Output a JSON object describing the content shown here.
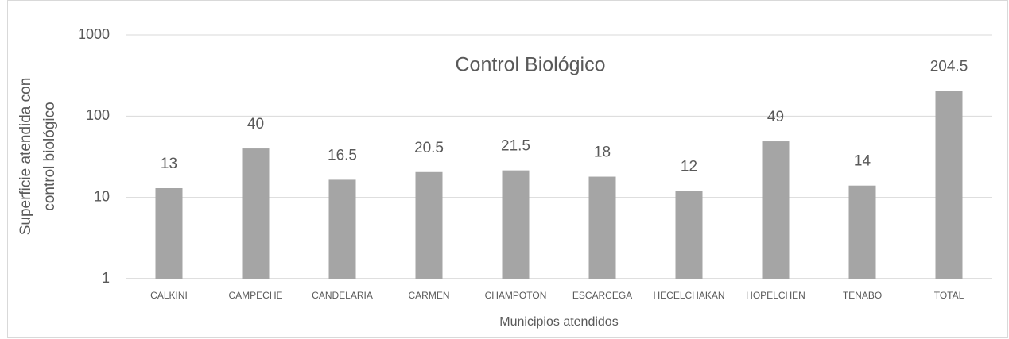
{
  "chart_data": {
    "type": "bar",
    "title": "Control Biológico",
    "x_label": "Municipios atendidos",
    "y_label": [
      "Superficie atendida con",
      "control biológico"
    ],
    "categories": [
      "CALKINI",
      "CAMPECHE",
      "CANDELARIA",
      "CARMEN",
      "CHAMPOTON",
      "ESCARCEGA",
      "HECELCHAKAN",
      "HOPELCHEN",
      "TENABO",
      "TOTAL"
    ],
    "values": [
      13,
      40,
      16.5,
      20.5,
      21.5,
      18,
      12,
      49,
      14,
      204.5
    ],
    "color": "#a5a5a5",
    "log_scale": true,
    "ylim": [
      1,
      1000
    ],
    "yticks": [
      1,
      10,
      100,
      1000
    ],
    "grid": true
  }
}
